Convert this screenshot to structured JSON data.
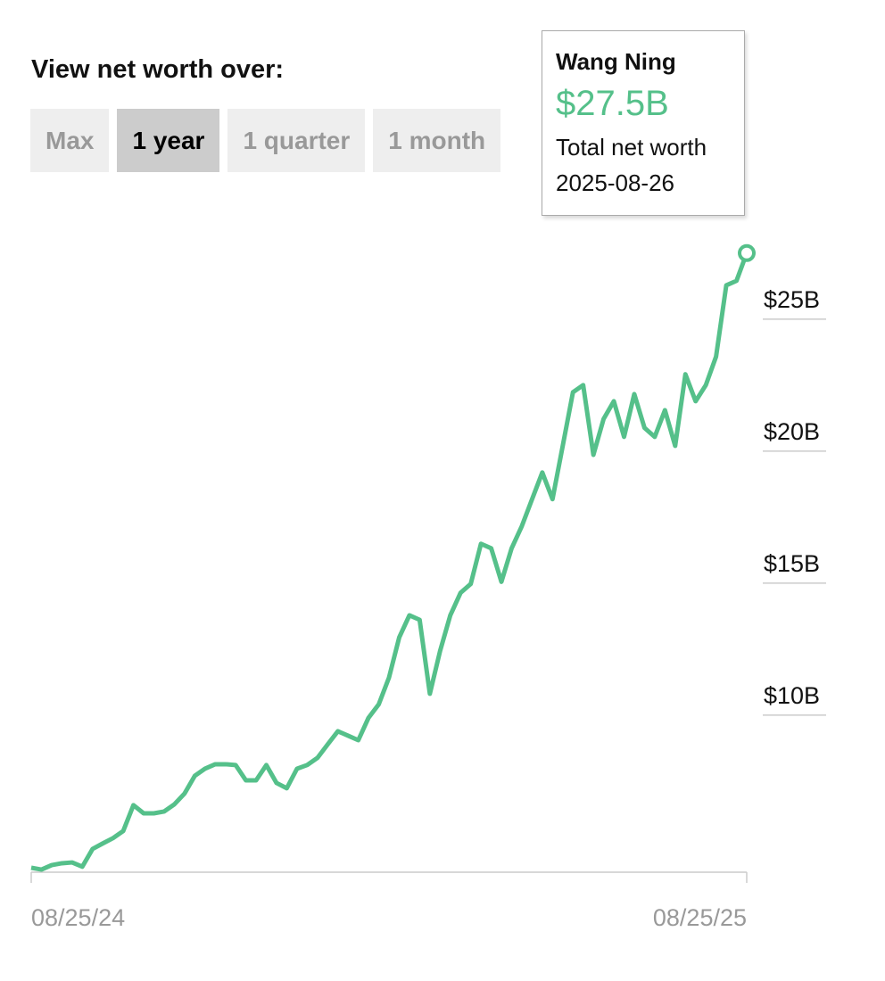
{
  "controls": {
    "label": "View net worth over:",
    "options": [
      "Max",
      "1 year",
      "1 quarter",
      "1 month"
    ],
    "selected": "1 year"
  },
  "tooltip": {
    "value": "$27.5B",
    "label": "Total net worth",
    "date": "2025-08-26"
  },
  "chart_data": {
    "type": "line",
    "categories": [
      "08/25/24",
      null,
      null,
      null,
      null,
      null,
      null,
      null,
      null,
      null,
      null,
      null,
      null,
      null,
      null,
      null,
      null,
      null,
      null,
      null,
      null,
      null,
      null,
      null,
      null,
      null,
      null,
      null,
      null,
      null,
      null,
      null,
      null,
      null,
      null,
      null,
      null,
      null,
      null,
      null,
      null,
      null,
      null,
      null,
      null,
      null,
      null,
      null,
      null,
      null,
      null,
      null,
      null,
      null,
      null,
      null,
      null,
      null,
      null,
      null,
      null,
      null,
      null,
      null,
      null,
      null,
      null,
      null,
      null,
      null,
      "08/25/25"
    ],
    "series": [
      {
        "name": "Wang Ning",
        "color": "#55c08a",
        "values": [
          4.22,
          4.15,
          4.32,
          4.39,
          4.42,
          4.26,
          4.93,
          5.14,
          5.34,
          5.61,
          6.59,
          6.28,
          6.28,
          6.35,
          6.62,
          7.03,
          7.7,
          7.97,
          8.14,
          8.14,
          8.11,
          7.53,
          7.53,
          8.11,
          7.43,
          7.23,
          7.97,
          8.11,
          8.38,
          8.89,
          9.39,
          9.22,
          9.05,
          9.9,
          10.41,
          11.42,
          12.94,
          13.78,
          13.61,
          10.81,
          12.43,
          13.78,
          14.63,
          14.97,
          16.49,
          16.32,
          15.05,
          16.32,
          17.16,
          18.18,
          19.19,
          18.18,
          20.2,
          22.23,
          22.5,
          19.86,
          21.22,
          21.89,
          20.54,
          22.16,
          20.88,
          20.54,
          21.55,
          20.2,
          22.91,
          21.89,
          22.5,
          23.58,
          26.28,
          26.45,
          27.5
        ]
      }
    ],
    "ylim": [
      4,
      28
    ],
    "yticks": [
      {
        "value": 10,
        "label": "$10B"
      },
      {
        "value": 15,
        "label": "$15B"
      },
      {
        "value": 20,
        "label": "$20B"
      },
      {
        "value": 25,
        "label": "$25B"
      }
    ]
  }
}
